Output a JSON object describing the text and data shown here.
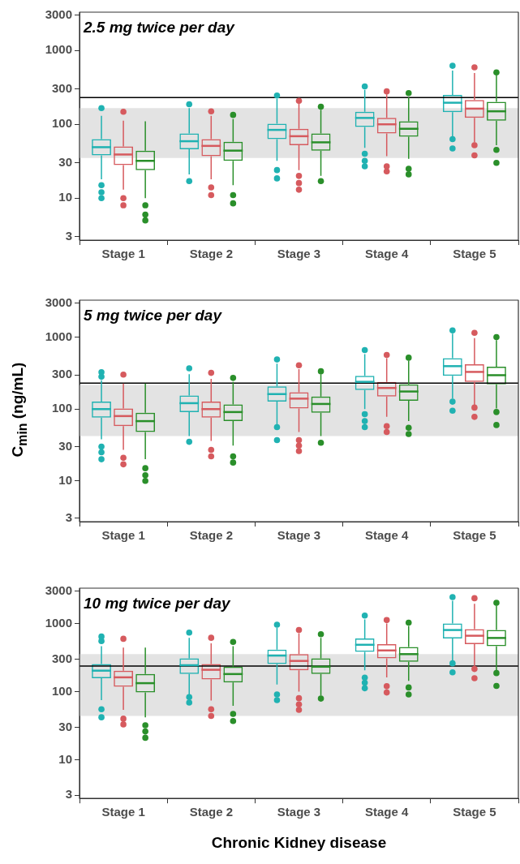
{
  "chart_data": [
    {
      "type": "box",
      "title": "2.5 mg twice per day",
      "categories": [
        "Stage 1",
        "Stage 2",
        "Stage 3",
        "Stage 4",
        "Stage 5"
      ],
      "log": true,
      "ylim": [
        2.7,
        3300
      ],
      "yticks": [
        3,
        10,
        30,
        100,
        300,
        1000,
        3000
      ],
      "grid": false,
      "legend": false,
      "ref_lines": [
        {
          "axis": "y",
          "value": 230,
          "color": "#000000"
        }
      ],
      "bands": [
        {
          "axis": "y",
          "from": 35,
          "to": 166,
          "color": "#e3e3e3"
        }
      ],
      "series": [
        {
          "color": "#20b2b2",
          "boxes": [
            {
              "low": 18,
              "q1": 38,
              "median": 49,
              "q3": 63,
              "high": 130,
              "outliers": [
                10,
                12,
                15,
                166
              ]
            },
            {
              "low": 21,
              "q1": 46,
              "median": 59,
              "q3": 75,
              "high": 166,
              "outliers": [
                17,
                187
              ]
            },
            {
              "low": 32,
              "q1": 63,
              "median": 84,
              "q3": 102,
              "high": 222,
              "outliers": [
                18.5,
                24,
                245
              ]
            },
            {
              "low": 48,
              "q1": 92,
              "median": 122,
              "q3": 148,
              "high": 292,
              "outliers": [
                27,
                32,
                40,
                326
              ]
            },
            {
              "low": 69,
              "q1": 146,
              "median": 196,
              "q3": 250,
              "high": 535,
              "outliers": [
                47,
                63,
                620
              ]
            }
          ]
        },
        {
          "color": "#d65a5e",
          "boxes": [
            {
              "low": 13,
              "q1": 28,
              "median": 39,
              "q3": 50,
              "high": 112,
              "outliers": [
                8,
                10,
                148
              ]
            },
            {
              "low": 18,
              "q1": 37,
              "median": 51,
              "q3": 63,
              "high": 130,
              "outliers": [
                11,
                14,
                150
              ]
            },
            {
              "low": 24,
              "q1": 52,
              "median": 69,
              "q3": 87,
              "high": 192,
              "outliers": [
                13,
                16,
                20,
                208
              ]
            },
            {
              "low": 37,
              "q1": 75,
              "median": 100,
              "q3": 122,
              "high": 255,
              "outliers": [
                23,
                27,
                279
              ]
            },
            {
              "low": 57,
              "q1": 122,
              "median": 163,
              "q3": 214,
              "high": 495,
              "outliers": [
                38,
                52,
                590
              ]
            }
          ]
        },
        {
          "color": "#2a8f2a",
          "boxes": [
            {
              "low": 10,
              "q1": 24,
              "median": 32,
              "q3": 44,
              "high": 110,
              "outliers": [
                5,
                6,
                8
              ]
            },
            {
              "low": 15,
              "q1": 32,
              "median": 44,
              "q3": 58,
              "high": 118,
              "outliers": [
                8.5,
                11,
                134
              ]
            },
            {
              "low": 20,
              "q1": 44,
              "median": 57,
              "q3": 75,
              "high": 158,
              "outliers": [
                17,
                173
              ]
            },
            {
              "low": 34,
              "q1": 68,
              "median": 87,
              "q3": 110,
              "high": 233,
              "outliers": [
                21,
                25,
                265
              ]
            },
            {
              "low": 52,
              "q1": 112,
              "median": 150,
              "q3": 202,
              "high": 463,
              "outliers": [
                30,
                45,
                505
              ]
            }
          ]
        }
      ]
    },
    {
      "type": "box",
      "title": "5 mg twice per day",
      "ylabel": "C$_{min}$ (ng/mL)",
      "categories": [
        "Stage 1",
        "Stage 2",
        "Stage 3",
        "Stage 4",
        "Stage 5"
      ],
      "log": true,
      "ylim": [
        2.7,
        3300
      ],
      "yticks": [
        3,
        10,
        30,
        100,
        300,
        1000,
        3000
      ],
      "grid": false,
      "legend": false,
      "ref_lines": [
        {
          "axis": "y",
          "value": 230,
          "color": "#000000"
        }
      ],
      "bands": [
        {
          "axis": "y",
          "from": 42,
          "to": 217,
          "color": "#e3e3e3"
        }
      ],
      "series": [
        {
          "color": "#20b2b2",
          "boxes": [
            {
              "low": 38,
              "q1": 76,
              "median": 100,
              "q3": 127,
              "high": 252,
              "outliers": [
                20,
                25,
                30,
                283,
                327
              ]
            },
            {
              "low": 42,
              "q1": 91,
              "median": 121,
              "q3": 155,
              "high": 306,
              "outliers": [
                35,
                371
              ]
            },
            {
              "low": 61,
              "q1": 127,
              "median": 162,
              "q3": 207,
              "high": 429,
              "outliers": [
                37,
                56,
                492
              ]
            },
            {
              "low": 100,
              "q1": 184,
              "median": 240,
              "q3": 291,
              "high": 585,
              "outliers": [
                56,
                68,
                85,
                665
              ]
            },
            {
              "low": 140,
              "q1": 291,
              "median": 397,
              "q3": 512,
              "high": 1130,
              "outliers": [
                95,
                127,
                1250
              ]
            }
          ]
        },
        {
          "color": "#d65a5e",
          "boxes": [
            {
              "low": 27,
              "q1": 58,
              "median": 80,
              "q3": 102,
              "high": 228,
              "outliers": [
                17,
                21,
                303
              ]
            },
            {
              "low": 36,
              "q1": 76,
              "median": 100,
              "q3": 127,
              "high": 264,
              "outliers": [
                22,
                27,
                320
              ]
            },
            {
              "low": 48,
              "q1": 102,
              "median": 140,
              "q3": 172,
              "high": 361,
              "outliers": [
                26,
                31,
                37,
                409
              ]
            },
            {
              "low": 78,
              "q1": 150,
              "median": 197,
              "q3": 240,
              "high": 512,
              "outliers": [
                48,
                58,
                569
              ]
            },
            {
              "low": 110,
              "q1": 240,
              "median": 330,
              "q3": 421,
              "high": 980,
              "outliers": [
                78,
                105,
                1157
              ]
            }
          ]
        },
        {
          "color": "#2a8f2a",
          "boxes": [
            {
              "low": 20,
              "q1": 48,
              "median": 68,
              "q3": 89,
              "high": 228,
              "outliers": [
                10,
                12,
                15
              ]
            },
            {
              "low": 31,
              "q1": 68,
              "median": 91,
              "q3": 116,
              "high": 240,
              "outliers": [
                18,
                22,
                272
              ]
            },
            {
              "low": 42,
              "q1": 89,
              "median": 118,
              "q3": 150,
              "high": 306,
              "outliers": [
                34,
                337
              ]
            },
            {
              "low": 68,
              "q1": 131,
              "median": 176,
              "q3": 221,
              "high": 473,
              "outliers": [
                45,
                55,
                521
              ]
            },
            {
              "low": 102,
              "q1": 221,
              "median": 297,
              "q3": 390,
              "high": 915,
              "outliers": [
                60,
                91,
                1010
              ]
            }
          ]
        }
      ]
    },
    {
      "type": "box",
      "title": "10 mg twice per day",
      "xlabel": "Chronic Kidney disease",
      "categories": [
        "Stage 1",
        "Stage 2",
        "Stage 3",
        "Stage 4",
        "Stage 5"
      ],
      "log": true,
      "ylim": [
        2.7,
        3300
      ],
      "yticks": [
        3,
        10,
        30,
        100,
        300,
        1000,
        3000
      ],
      "grid": false,
      "legend": false,
      "ref_lines": [
        {
          "axis": "y",
          "value": 237,
          "color": "#000000"
        }
      ],
      "bands": [
        {
          "axis": "y",
          "from": 44,
          "to": 355,
          "color": "#e3e3e3"
        }
      ],
      "series": [
        {
          "color": "#20b2b2",
          "boxes": [
            {
              "low": 75,
              "q1": 157,
              "median": 203,
              "q3": 254,
              "high": 464,
              "outliers": [
                42,
                55,
                553,
                643
              ]
            },
            {
              "low": 87,
              "q1": 181,
              "median": 244,
              "q3": 307,
              "high": 617,
              "outliers": [
                69,
                83,
                736
              ]
            },
            {
              "low": 127,
              "q1": 254,
              "median": 338,
              "q3": 414,
              "high": 866,
              "outliers": [
                75,
                91,
                962
              ]
            },
            {
              "low": 205,
              "q1": 383,
              "median": 487,
              "q3": 602,
              "high": 1150,
              "outliers": [
                112,
                135,
                160,
                1309
              ]
            },
            {
              "low": 287,
              "q1": 602,
              "median": 802,
              "q3": 1000,
              "high": 2150,
              "outliers": [
                192,
                260,
                2440
              ]
            }
          ]
        },
        {
          "color": "#d65a5e",
          "boxes": [
            {
              "low": 54,
              "q1": 118,
              "median": 162,
              "q3": 203,
              "high": 442,
              "outliers": [
                33,
                40,
                596
              ]
            },
            {
              "low": 74,
              "q1": 151,
              "median": 209,
              "q3": 254,
              "high": 511,
              "outliers": [
                44,
                55,
                617
              ]
            },
            {
              "low": 100,
              "q1": 205,
              "median": 282,
              "q3": 355,
              "high": 715,
              "outliers": [
                54,
                65,
                80,
                802
              ]
            },
            {
              "low": 162,
              "q1": 307,
              "median": 402,
              "q3": 496,
              "high": 1000,
              "outliers": [
                97,
                120,
                1122
              ]
            },
            {
              "low": 226,
              "q1": 496,
              "median": 661,
              "q3": 824,
              "high": 1950,
              "outliers": [
                157,
                215,
                2350
              ]
            }
          ]
        },
        {
          "color": "#2a8f2a",
          "boxes": [
            {
              "low": 42,
              "q1": 97,
              "median": 133,
              "q3": 181,
              "high": 442,
              "outliers": [
                21,
                26,
                32
              ]
            },
            {
              "low": 62,
              "q1": 136,
              "median": 181,
              "q3": 232,
              "high": 464,
              "outliers": [
                37,
                47,
                536
              ]
            },
            {
              "low": 87,
              "q1": 181,
              "median": 232,
              "q3": 307,
              "high": 617,
              "outliers": [
                79,
                695
              ]
            },
            {
              "low": 144,
              "q1": 274,
              "median": 355,
              "q3": 451,
              "high": 925,
              "outliers": [
                91,
                115,
                1030
              ]
            },
            {
              "low": 196,
              "q1": 464,
              "median": 613,
              "q3": 802,
              "high": 1810,
              "outliers": [
                121,
                187,
                2010
              ]
            }
          ]
        }
      ]
    }
  ]
}
